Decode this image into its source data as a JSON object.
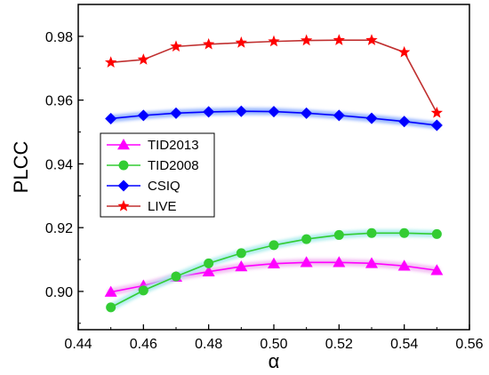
{
  "chart_data": {
    "type": "line",
    "xlabel": "α",
    "ylabel": "PLCC",
    "xlim": [
      0.44,
      0.56
    ],
    "ylim": [
      0.888,
      0.99
    ],
    "xticks": [
      0.44,
      0.46,
      0.48,
      0.5,
      0.52,
      0.54,
      0.56
    ],
    "xtick_labels": [
      "0.44",
      "0.46",
      "0.48",
      "0.50",
      "0.52",
      "0.54",
      "0.56"
    ],
    "yticks": [
      0.9,
      0.92,
      0.94,
      0.96,
      0.98
    ],
    "ytick_labels": [
      "0.90",
      "0.92",
      "0.94",
      "0.96",
      "0.98"
    ],
    "grid": false,
    "legend_position": "center-left",
    "x": [
      0.45,
      0.46,
      0.47,
      0.48,
      0.49,
      0.5,
      0.51,
      0.52,
      0.53,
      0.54,
      0.55
    ],
    "series": [
      {
        "name": "TID2013",
        "color": "#ff00ff",
        "glow": "#f2b8f2",
        "marker": "triangle",
        "values": [
          0.8998,
          0.9018,
          0.9045,
          0.9062,
          0.9078,
          0.9087,
          0.9091,
          0.9091,
          0.9088,
          0.908,
          0.9066
        ]
      },
      {
        "name": "TID2008",
        "color": "#33cc33",
        "glow": "#a8ecec",
        "marker": "circle",
        "values": [
          0.895,
          0.9003,
          0.9047,
          0.9088,
          0.912,
          0.9145,
          0.9164,
          0.9177,
          0.9183,
          0.9183,
          0.918
        ]
      },
      {
        "name": "CSIQ",
        "color": "#0000ff",
        "glow": "#8fb0ff",
        "marker": "diamond",
        "values": [
          0.9542,
          0.9552,
          0.9559,
          0.9563,
          0.9565,
          0.9564,
          0.9559,
          0.9552,
          0.9543,
          0.9533,
          0.9521
        ]
      },
      {
        "name": "LIVE",
        "color": "#ff0000",
        "glow": "none",
        "lineColor": "#c03030",
        "marker": "star",
        "values": [
          0.9718,
          0.9727,
          0.9768,
          0.9775,
          0.978,
          0.9784,
          0.9787,
          0.9788,
          0.9788,
          0.975,
          0.956
        ]
      }
    ]
  }
}
